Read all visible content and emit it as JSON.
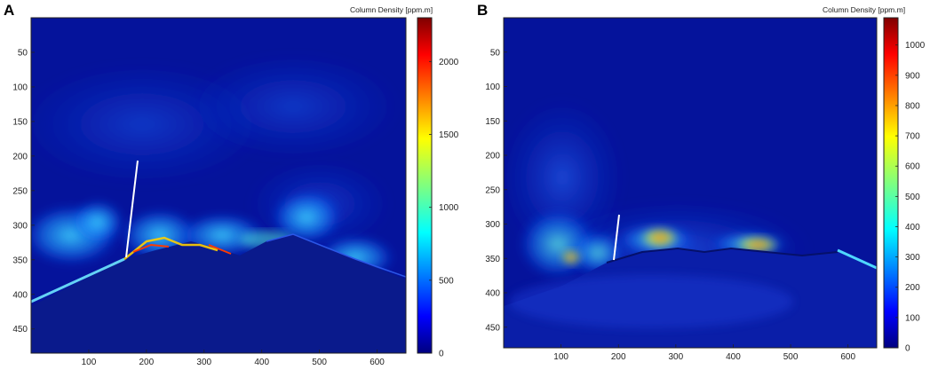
{
  "colors": {
    "background_field": "#05139b",
    "mountain": "#0a1a8c",
    "jet_stops": [
      "#00007f",
      "#0000ff",
      "#007fff",
      "#00ffff",
      "#7fff7f",
      "#ffff00",
      "#ff7f00",
      "#ff0000",
      "#7f0000"
    ],
    "marker_line": "#ffffff"
  },
  "panels": [
    {
      "letter": "A",
      "colorbar_title": "Column Density [ppm.m]",
      "x_ticks": [
        "100",
        "200",
        "300",
        "400",
        "500",
        "600"
      ],
      "y_ticks": [
        "50",
        "100",
        "150",
        "200",
        "250",
        "300",
        "350",
        "400",
        "450"
      ],
      "colorbar_ticks": [
        "0",
        "500",
        "1000",
        "1500",
        "2000"
      ],
      "colorbar_max": 2300
    },
    {
      "letter": "B",
      "colorbar_title": "Column Density [ppm.m]",
      "x_ticks": [
        "100",
        "200",
        "300",
        "400",
        "500",
        "600"
      ],
      "y_ticks": [
        "50",
        "100",
        "150",
        "200",
        "250",
        "300",
        "350",
        "400",
        "450"
      ],
      "colorbar_ticks": [
        "0",
        "100",
        "200",
        "300",
        "400",
        "500",
        "600",
        "700",
        "800",
        "900",
        "1000"
      ],
      "colorbar_max": 1090
    }
  ]
}
